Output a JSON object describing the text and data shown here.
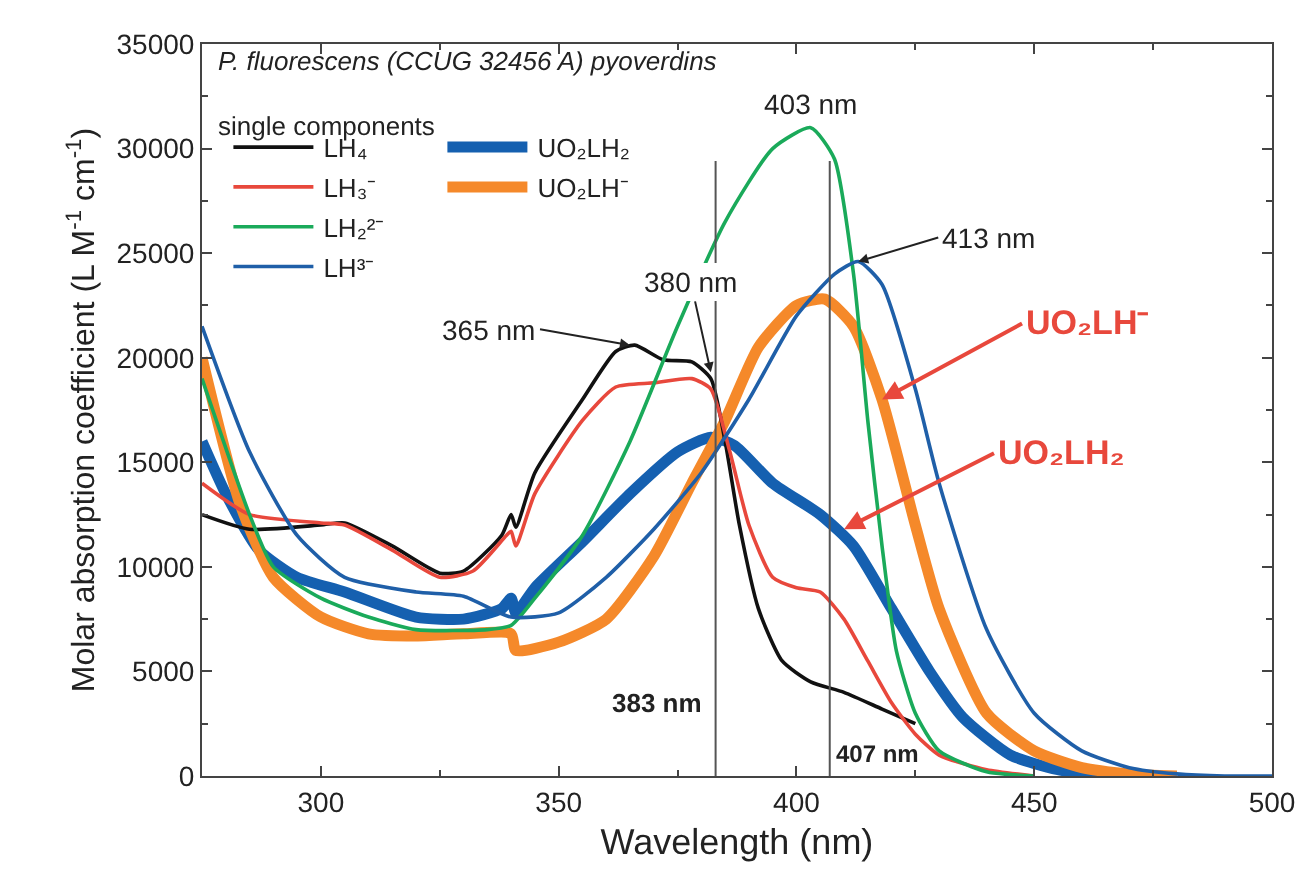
{
  "chart_data": {
    "type": "line",
    "title": "P. fluorescens (CCUG 32456 A) pyoverdins",
    "subtitle": "single components",
    "xlabel": "Wavelength (nm)",
    "ylabel": "Molar absorption coefficient (L M$^{-1}$ cm$^{-1}$)",
    "xlim": [
      275,
      500
    ],
    "xticks": [
      300,
      350,
      400,
      450,
      500
    ],
    "ylim": [
      0,
      35000
    ],
    "yticks": [
      0,
      5000,
      10000,
      15000,
      20000,
      25000,
      30000,
      35000
    ],
    "grid": false,
    "legend": "top left",
    "marker": "none",
    "line_style": "solid",
    "series": [
      {
        "name": "LH₄",
        "color": "#111111",
        "x": [
          275,
          285,
          300,
          305,
          315,
          325,
          330,
          338,
          340,
          341,
          345,
          355,
          362,
          366,
          372,
          378,
          382,
          385,
          388,
          392,
          397,
          403,
          410,
          418,
          425
        ],
        "values": [
          12500,
          11800,
          12000,
          12100,
          11000,
          9700,
          9800,
          11500,
          12500,
          11900,
          14500,
          18000,
          20300,
          20600,
          19900,
          19800,
          19000,
          16000,
          12000,
          8000,
          5500,
          4500,
          4000,
          3200,
          2500
        ]
      },
      {
        "name": "LH₃⁻",
        "color": "#e8483c",
        "x": [
          275,
          285,
          300,
          305,
          315,
          325,
          332,
          339,
          340,
          341,
          345,
          355,
          362,
          370,
          378,
          382,
          386,
          390,
          395,
          400,
          405,
          410,
          415,
          420,
          425,
          430,
          440,
          450
        ],
        "values": [
          14000,
          12500,
          12100,
          12000,
          10800,
          9500,
          9800,
          11500,
          11700,
          11000,
          13500,
          17000,
          18600,
          18800,
          19000,
          18500,
          15500,
          12000,
          9500,
          9000,
          8800,
          7500,
          5500,
          3500,
          2000,
          1000,
          300,
          0
        ]
      },
      {
        "name": "LH₂²⁻",
        "color": "#1aaa5a",
        "x": [
          275,
          285,
          290,
          300,
          310,
          320,
          335,
          340,
          345,
          355,
          365,
          375,
          385,
          395,
          403,
          408,
          412,
          415,
          418,
          421,
          425,
          430,
          440,
          450
        ],
        "values": [
          19000,
          12500,
          10000,
          8500,
          7600,
          7000,
          7000,
          7200,
          8500,
          11500,
          16000,
          21500,
          26500,
          30000,
          31000,
          29500,
          24000,
          17000,
          11000,
          6000,
          3000,
          1200,
          200,
          0
        ]
      },
      {
        "name": "LH³⁻",
        "color": "#1f5fa8",
        "x": [
          275,
          285,
          295,
          305,
          320,
          330,
          340,
          350,
          360,
          370,
          380,
          390,
          400,
          408,
          413,
          418,
          425,
          430,
          440,
          450,
          460,
          470,
          480,
          490,
          500
        ],
        "values": [
          21500,
          15500,
          11500,
          9500,
          8800,
          8600,
          7600,
          7800,
          9500,
          11800,
          14500,
          18000,
          22000,
          24000,
          24600,
          23500,
          18500,
          14000,
          7000,
          3000,
          1200,
          400,
          100,
          0,
          0
        ]
      },
      {
        "name": "UO₂LH₂",
        "color": "#1560b0",
        "x": [
          275,
          280,
          287,
          295,
          305,
          320,
          330,
          338,
          340,
          341,
          345,
          355,
          365,
          375,
          382,
          387,
          395,
          405,
          412,
          420,
          428,
          435,
          445,
          455,
          465
        ],
        "values": [
          16000,
          13500,
          10800,
          9500,
          8800,
          7600,
          7500,
          8000,
          8500,
          7800,
          9000,
          11200,
          13500,
          15500,
          16200,
          15800,
          14000,
          12500,
          11000,
          8000,
          5000,
          2800,
          1000,
          300,
          0
        ]
      },
      {
        "name": "UO₂LH⁻",
        "color": "#f5892a",
        "x": [
          275,
          283,
          290,
          300,
          310,
          320,
          330,
          340,
          341,
          350,
          360,
          370,
          378,
          385,
          392,
          400,
          406,
          412,
          418,
          425,
          430,
          440,
          450,
          460,
          470,
          480
        ],
        "values": [
          20000,
          13000,
          9500,
          7600,
          6800,
          6700,
          6800,
          6800,
          6000,
          6400,
          7500,
          10500,
          14000,
          17000,
          20500,
          22500,
          22800,
          21500,
          18000,
          12000,
          8000,
          3000,
          1200,
          400,
          100,
          0
        ]
      }
    ],
    "ref_lines": [
      {
        "axis": "x",
        "value": 383,
        "label": "383 nm",
        "color": "#555555"
      },
      {
        "axis": "x",
        "value": 407,
        "label": "407 nm",
        "color": "#555555"
      }
    ],
    "annotations": [
      {
        "text": "365 nm",
        "x": 365,
        "y": 20600
      },
      {
        "text": "380 nm",
        "x": 382,
        "y": 19300
      },
      {
        "text": "403 nm",
        "x": 403,
        "y": 31000
      },
      {
        "text": "413 nm",
        "x": 413,
        "y": 24600
      },
      {
        "text": "UO₂LH⁻",
        "x": 418,
        "y": 18000
      },
      {
        "text": "UO₂LH₂",
        "x": 410,
        "y": 11800
      }
    ]
  }
}
